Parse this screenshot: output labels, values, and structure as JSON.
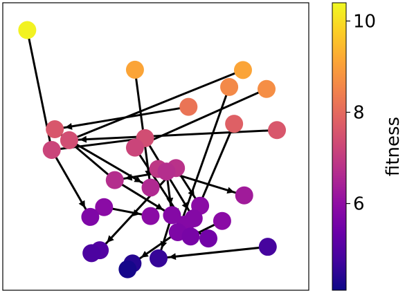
{
  "chart_data": {
    "type": "scatter",
    "title": "",
    "xlabel": "",
    "ylabel": "",
    "xlim": [
      0,
      100
    ],
    "ylim": [
      0,
      100
    ],
    "colormap": "plasma",
    "colorbar": {
      "label": "fitness",
      "range": [
        4.1,
        10.4
      ],
      "ticks": [
        {
          "value": 6,
          "label": "6"
        },
        {
          "value": 8,
          "label": "8"
        },
        {
          "value": 10,
          "label": "10"
        }
      ]
    },
    "points": [
      {
        "id": 0,
        "x": 8.0,
        "y": 90.5,
        "fitness": 10.3
      },
      {
        "id": 1,
        "x": 43.2,
        "y": 76.7,
        "fitness": 9.1
      },
      {
        "id": 2,
        "x": 78.5,
        "y": 76.6,
        "fitness": 9.1
      },
      {
        "id": 3,
        "x": 86.2,
        "y": 70.0,
        "fitness": 8.7
      },
      {
        "id": 4,
        "x": 74.0,
        "y": 70.7,
        "fitness": 8.6
      },
      {
        "id": 5,
        "x": 60.7,
        "y": 63.8,
        "fitness": 8.2
      },
      {
        "id": 6,
        "x": 75.6,
        "y": 57.9,
        "fitness": 7.8
      },
      {
        "id": 7,
        "x": 89.6,
        "y": 55.7,
        "fitness": 7.6
      },
      {
        "id": 8,
        "x": 17.0,
        "y": 56.0,
        "fitness": 7.6
      },
      {
        "id": 9,
        "x": 46.5,
        "y": 52.9,
        "fitness": 7.4
      },
      {
        "id": 10,
        "x": 21.7,
        "y": 52.2,
        "fitness": 7.4
      },
      {
        "id": 11,
        "x": 43.2,
        "y": 49.6,
        "fitness": 7.2
      },
      {
        "id": 12,
        "x": 16.0,
        "y": 48.8,
        "fitness": 7.2
      },
      {
        "id": 13,
        "x": 50.8,
        "y": 42.2,
        "fitness": 6.9
      },
      {
        "id": 14,
        "x": 56.6,
        "y": 42.5,
        "fitness": 6.8
      },
      {
        "id": 15,
        "x": 53.5,
        "y": 41.3,
        "fitness": 6.7
      },
      {
        "id": 16,
        "x": 36.6,
        "y": 38.3,
        "fitness": 6.7
      },
      {
        "id": 17,
        "x": 48.3,
        "y": 35.7,
        "fitness": 6.6
      },
      {
        "id": 18,
        "x": 78.9,
        "y": 33.0,
        "fitness": 6.3
      },
      {
        "id": 19,
        "x": 33.1,
        "y": 28.9,
        "fitness": 5.9
      },
      {
        "id": 20,
        "x": 28.6,
        "y": 25.5,
        "fitness": 5.7
      },
      {
        "id": 21,
        "x": 64.5,
        "y": 29.4,
        "fitness": 5.9
      },
      {
        "id": 22,
        "x": 55.3,
        "y": 26.1,
        "fitness": 5.8
      },
      {
        "id": 23,
        "x": 48.3,
        "y": 25.8,
        "fitness": 5.9
      },
      {
        "id": 24,
        "x": 62.4,
        "y": 25.0,
        "fitness": 5.8
      },
      {
        "id": 25,
        "x": 59.6,
        "y": 22.9,
        "fitness": 5.8
      },
      {
        "id": 26,
        "x": 71.7,
        "y": 24.1,
        "fitness": 5.9
      },
      {
        "id": 27,
        "x": 57.2,
        "y": 20.2,
        "fitness": 5.7
      },
      {
        "id": 28,
        "x": 61.4,
        "y": 18.7,
        "fitness": 5.6
      },
      {
        "id": 29,
        "x": 67.2,
        "y": 18.0,
        "fitness": 5.5
      },
      {
        "id": 30,
        "x": 31.7,
        "y": 13.9,
        "fitness": 5.0
      },
      {
        "id": 31,
        "x": 29.0,
        "y": 12.9,
        "fitness": 4.9
      },
      {
        "id": 32,
        "x": 86.6,
        "y": 15.1,
        "fitness": 4.8
      },
      {
        "id": 33,
        "x": 50.9,
        "y": 11.1,
        "fitness": 4.6
      },
      {
        "id": 34,
        "x": 42.4,
        "y": 9.3,
        "fitness": 4.4
      },
      {
        "id": 35,
        "x": 40.8,
        "y": 7.3,
        "fitness": 4.2
      }
    ],
    "edges": [
      {
        "from": 0,
        "to": 12,
        "arrow": false
      },
      {
        "from": 1,
        "to": 17,
        "arrow": true
      },
      {
        "from": 2,
        "to": 10,
        "arrow": false
      },
      {
        "from": 3,
        "to": 11,
        "arrow": false
      },
      {
        "from": 4,
        "to": 27,
        "arrow": false
      },
      {
        "from": 5,
        "to": 8,
        "arrow": true
      },
      {
        "from": 6,
        "to": 24,
        "arrow": false
      },
      {
        "from": 7,
        "to": 10,
        "arrow": true
      },
      {
        "from": 8,
        "to": 16,
        "arrow": false
      },
      {
        "from": 9,
        "to": 12,
        "arrow": false
      },
      {
        "from": 10,
        "to": 17,
        "arrow": true
      },
      {
        "from": 12,
        "to": 20,
        "arrow": true
      },
      {
        "from": 11,
        "to": 25,
        "arrow": true
      },
      {
        "from": 13,
        "to": 18,
        "arrow": true
      },
      {
        "from": 14,
        "to": 30,
        "arrow": true
      },
      {
        "from": 15,
        "to": 22,
        "arrow": true
      },
      {
        "from": 16,
        "to": 22,
        "arrow": true
      },
      {
        "from": 15,
        "to": 16,
        "arrow": true
      },
      {
        "from": 14,
        "to": 21,
        "arrow": true
      },
      {
        "from": 9,
        "to": 24,
        "arrow": true
      },
      {
        "from": 19,
        "to": 23,
        "arrow": true
      },
      {
        "from": 26,
        "to": 28,
        "arrow": false
      },
      {
        "from": 22,
        "to": 33,
        "arrow": true
      },
      {
        "from": 27,
        "to": 34,
        "arrow": true
      },
      {
        "from": 32,
        "to": 33,
        "arrow": true
      },
      {
        "from": 29,
        "to": 25,
        "arrow": false
      }
    ]
  }
}
